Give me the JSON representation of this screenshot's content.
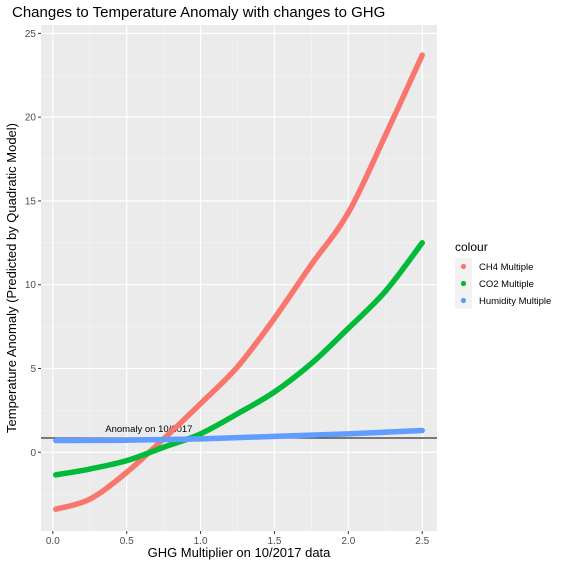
{
  "chart_data": {
    "type": "line",
    "title": "Changes to Temperature Anomaly with changes to GHG",
    "xlabel": "GHG Multiplier on 10/2017 data",
    "ylabel": "Temperature Anomaly (Predicted by Quadratic Model)",
    "xlim": [
      -0.08,
      2.6
    ],
    "ylim": [
      -4.7,
      25.5
    ],
    "x_ticks": [
      0.0,
      0.5,
      1.0,
      1.5,
      2.0,
      2.5
    ],
    "x_tick_labels": [
      "0.0",
      "0.5",
      "1.0",
      "1.5",
      "2.0",
      "2.5"
    ],
    "y_ticks": [
      0,
      5,
      10,
      15,
      20,
      25
    ],
    "y_tick_labels": [
      "0",
      "5",
      "10",
      "15",
      "20",
      "25"
    ],
    "grid": true,
    "legend": {
      "title": "colour",
      "position": "right"
    },
    "series": [
      {
        "name": "CH4 Multiple",
        "color": "#F8766D",
        "x": [
          0.02,
          0.25,
          0.5,
          0.75,
          1.0,
          1.25,
          1.5,
          1.75,
          2.0,
          2.25,
          2.5
        ],
        "y": [
          -3.4,
          -2.8,
          -1.2,
          0.8,
          2.9,
          5.1,
          8.0,
          11.2,
          14.3,
          18.9,
          23.7
        ]
      },
      {
        "name": "CO2 Multiple",
        "color": "#00BA38",
        "x": [
          0.02,
          0.25,
          0.5,
          0.75,
          1.0,
          1.25,
          1.5,
          1.75,
          2.0,
          2.25,
          2.5
        ],
        "y": [
          -1.35,
          -1.0,
          -0.5,
          0.3,
          1.1,
          2.3,
          3.6,
          5.3,
          7.4,
          9.6,
          12.5
        ]
      },
      {
        "name": "Humidity Multiple",
        "color": "#619CFF",
        "x": [
          0.02,
          0.5,
          1.0,
          1.5,
          2.0,
          2.5
        ],
        "y": [
          0.7,
          0.72,
          0.8,
          0.95,
          1.1,
          1.3
        ]
      }
    ],
    "hline": {
      "y": 0.85,
      "label": "Anomaly on 10/2017",
      "label_x": 0.65,
      "color": "#333333"
    }
  }
}
